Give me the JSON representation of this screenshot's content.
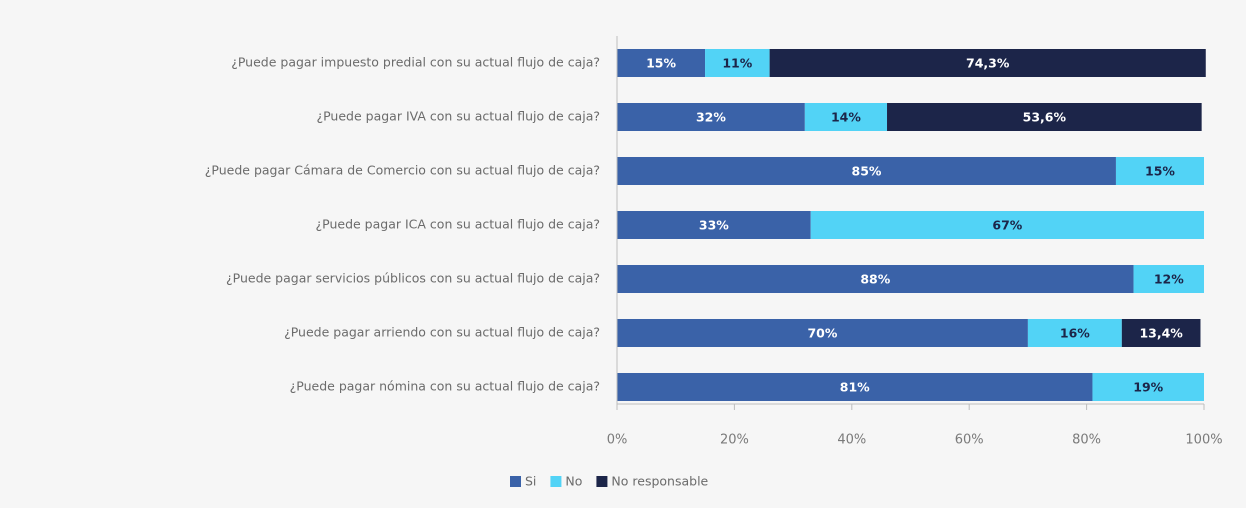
{
  "chart_data": {
    "type": "stacked-barh",
    "categories": [
      "¿Puede pagar impuesto predial con su actual flujo de caja?",
      "¿Puede pagar IVA con su actual flujo de caja?",
      "¿Puede pagar Cámara de Comercio con su actual flujo de caja?",
      "¿Puede pagar ICA con su actual flujo de caja?",
      "¿Puede pagar servicios públicos con su actual flujo de caja?",
      "¿Puede pagar arriendo con su actual flujo de caja?",
      "¿Puede pagar nómina con su actual flujo de caja?"
    ],
    "series": [
      {
        "name": "Si",
        "color": "#3a62a8",
        "values": [
          15,
          32,
          85,
          33,
          88,
          70,
          81
        ],
        "value_labels": [
          "15%",
          "32%",
          "85%",
          "33%",
          "88%",
          "70%",
          "81%"
        ]
      },
      {
        "name": "No",
        "color": "#52d3f6",
        "values": [
          11,
          14,
          15,
          67,
          12,
          16,
          19
        ],
        "value_labels": [
          "11%",
          "14%",
          "15%",
          "67%",
          "12%",
          "16%",
          "19%"
        ]
      },
      {
        "name": "No responsable",
        "color": "#1c2549",
        "values": [
          74.3,
          53.6,
          null,
          null,
          null,
          13.4,
          null
        ],
        "value_labels": [
          "74,3%",
          "53,6%",
          null,
          null,
          null,
          "13,4%",
          null
        ]
      }
    ],
    "xlim": [
      0,
      100
    ],
    "xticks": [
      {
        "value": 0,
        "label": "0%"
      },
      {
        "value": 20,
        "label": "20%"
      },
      {
        "value": 40,
        "label": "40%"
      },
      {
        "value": 60,
        "label": "60%"
      },
      {
        "value": 80,
        "label": "80%"
      },
      {
        "value": 100,
        "label": "100%"
      }
    ],
    "legend": "bottom"
  }
}
